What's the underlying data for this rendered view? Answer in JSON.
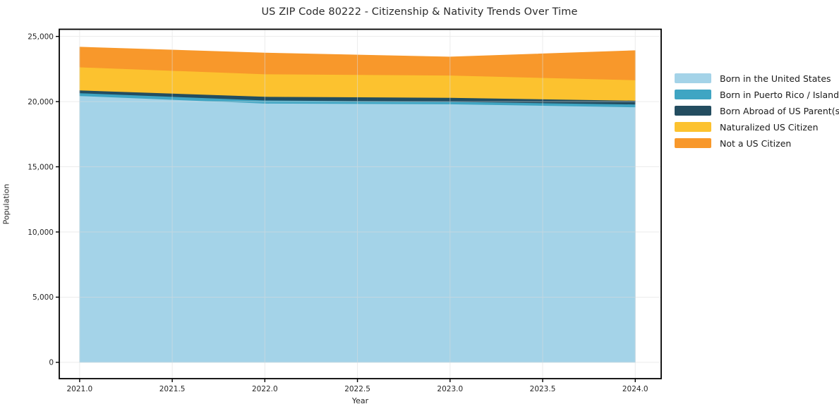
{
  "title": "US ZIP Code 80222 - Citizenship & Nativity Trends Over Time",
  "chart_data": {
    "type": "area",
    "stacked": true,
    "title": "US ZIP Code 80222 - Citizenship & Nativity Trends Over Time",
    "xlabel": "Year",
    "ylabel": "Population",
    "x": [
      2021,
      2022,
      2023,
      2024
    ],
    "series": [
      {
        "name": "Born in the United States",
        "color": "#A4D3E8",
        "values": [
          20450,
          19870,
          19820,
          19585
        ]
      },
      {
        "name": "Born in Puerto Rico / Islands",
        "color": "#3FA5C3",
        "values": [
          215,
          240,
          180,
          215
        ]
      },
      {
        "name": "Born Abroad of US Parent(s)",
        "color": "#234D60",
        "values": [
          215,
          280,
          310,
          290
        ]
      },
      {
        "name": "Naturalized US Citizen",
        "color": "#FCC22F",
        "values": [
          1770,
          1730,
          1710,
          1570
        ]
      },
      {
        "name": "Not a US Citizen",
        "color": "#F8982B",
        "values": [
          1530,
          1610,
          1405,
          2250
        ]
      }
    ],
    "totals": [
      24180,
      23730,
      23425,
      23910
    ],
    "xticks": [
      2021.0,
      2021.5,
      2022.0,
      2022.5,
      2023.0,
      2023.5,
      2024.0
    ],
    "yticks": [
      0,
      5000,
      10000,
      15000,
      20000,
      25000
    ],
    "xlim": [
      2020.89,
      2024.14
    ],
    "ylim": [
      -1250,
      25550
    ],
    "grid": true,
    "grid_color": "#DCDCDC",
    "spine_color": "#000000",
    "legend_position": "right of plot, no frame"
  }
}
